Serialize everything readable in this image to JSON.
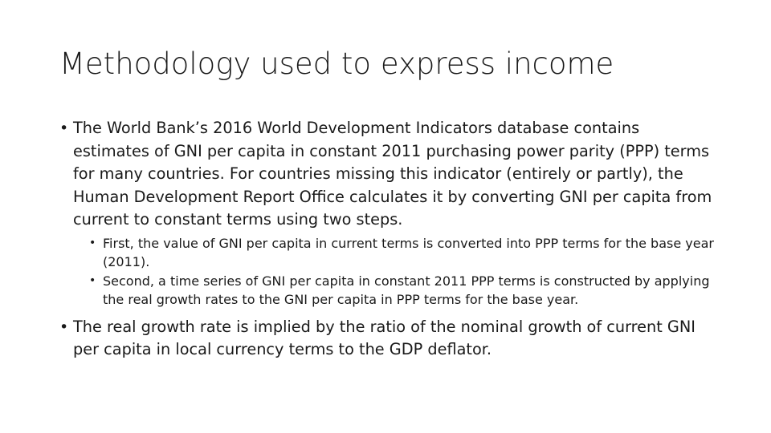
{
  "slide": {
    "title": "Methodology used to express income",
    "bullets": [
      {
        "marker": "•",
        "text": "The World Bank’s 2016 World Development Indicators database contains estimates of GNI per capita in constant 2011 purchasing power parity (PPP) terms for many countries. For countries missing this indicator (entirely or partly), the Human Development Report Office calculates it by converting GNI per capita from current to constant terms using two steps.",
        "sub_bullets": [
          {
            "marker": "•",
            "text": "First, the value of GNI per capita in current terms is converted into PPP terms for the base year (2011)."
          },
          {
            "marker": "•",
            "text": "Second, a time series of GNI per capita in constant 2011 PPP terms is constructed by applying the real growth rates to the GNI per capita in PPP terms for the base year."
          }
        ]
      },
      {
        "marker": "•",
        "text": "The real growth rate is implied by the ratio of the nominal growth of current GNI per capita in local currency terms to the GDP deflator."
      }
    ]
  }
}
